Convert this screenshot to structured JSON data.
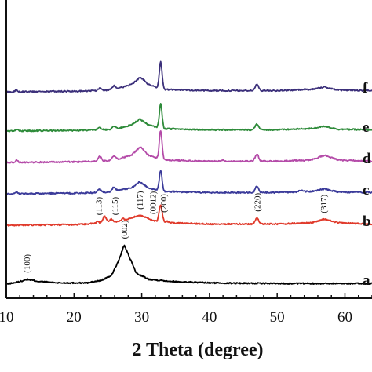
{
  "chart_data": {
    "type": "line",
    "title": "",
    "xlabel": "2 Theta (degree)",
    "ylabel": "",
    "xlim": [
      10,
      64
    ],
    "xticks": [
      10,
      20,
      30,
      40,
      50,
      60
    ],
    "grid": false,
    "series": [
      {
        "name": "a",
        "color": "#000000",
        "offset": 0,
        "baseline": [
          [
            10,
            0.0
          ],
          [
            12,
            2.0
          ],
          [
            13,
            4.0
          ],
          [
            15,
            2.0
          ],
          [
            18,
            1.0
          ],
          [
            22,
            1.0
          ],
          [
            24,
            3.0
          ],
          [
            25.5,
            7.0
          ],
          [
            26.5,
            18.0
          ],
          [
            27.4,
            32.0
          ],
          [
            28.2,
            22.0
          ],
          [
            29.2,
            9.0
          ],
          [
            31,
            4.0
          ],
          [
            35,
            2.0
          ],
          [
            40,
            1.0
          ],
          [
            50,
            0.5
          ],
          [
            64,
            0.5
          ]
        ],
        "peaks": []
      },
      {
        "name": "b",
        "color": "#e03a2b",
        "offset": 75,
        "baseline": [
          [
            10,
            0.0
          ],
          [
            20,
            0.5
          ],
          [
            22,
            1.0
          ],
          [
            23,
            1.5
          ],
          [
            24,
            2.0
          ],
          [
            25,
            2.5
          ],
          [
            26,
            3.0
          ],
          [
            27,
            3.5
          ],
          [
            28.5,
            6.0
          ],
          [
            29.5,
            8.0
          ],
          [
            30.5,
            7.0
          ],
          [
            31.5,
            4.0
          ],
          [
            32.5,
            3.0
          ],
          [
            34,
            2.0
          ],
          [
            40,
            1.0
          ],
          [
            50,
            1.0
          ],
          [
            55,
            2.0
          ],
          [
            57,
            5.0
          ],
          [
            59,
            2.0
          ],
          [
            64,
            1.0
          ]
        ],
        "peaks": [
          [
            23.5,
            1.5,
            0.15
          ],
          [
            24.5,
            5.0,
            0.25
          ],
          [
            25.5,
            2.5,
            0.2
          ],
          [
            27.2,
            1.5,
            0.2
          ],
          [
            32.8,
            14.0,
            0.22
          ],
          [
            33.8,
            1.0,
            0.2
          ],
          [
            47.0,
            5.0,
            0.25
          ]
        ]
      },
      {
        "name": "c",
        "color": "#3b3b9a",
        "offset": 115,
        "baseline": [
          [
            10,
            0.0
          ],
          [
            20,
            0.5
          ],
          [
            24,
            1.0
          ],
          [
            26,
            2.0
          ],
          [
            28.5,
            5.0
          ],
          [
            29.7,
            10.0
          ],
          [
            31,
            5.0
          ],
          [
            33,
            2.0
          ],
          [
            40,
            1.0
          ],
          [
            50,
            1.0
          ],
          [
            55,
            2.0
          ],
          [
            57,
            4.0
          ],
          [
            59,
            1.5
          ],
          [
            64,
            1.0
          ]
        ],
        "peaks": [
          [
            11.5,
            1.5,
            0.2
          ],
          [
            23.8,
            3.0,
            0.25
          ],
          [
            25.9,
            3.5,
            0.25
          ],
          [
            32.8,
            17.0,
            0.2
          ],
          [
            47.0,
            5.0,
            0.25
          ],
          [
            53.5,
            1.0,
            0.3
          ]
        ]
      },
      {
        "name": "d",
        "color": "#b44aa8",
        "offset": 155,
        "baseline": [
          [
            10,
            0.0
          ],
          [
            20,
            0.5
          ],
          [
            24,
            1.0
          ],
          [
            26,
            2.0
          ],
          [
            28.5,
            6.0
          ],
          [
            29.8,
            13.0
          ],
          [
            31,
            6.0
          ],
          [
            33,
            2.0
          ],
          [
            40,
            1.0
          ],
          [
            50,
            1.0
          ],
          [
            55,
            2.0
          ],
          [
            57,
            6.0
          ],
          [
            59,
            2.0
          ],
          [
            64,
            1.0
          ]
        ],
        "peaks": [
          [
            11.5,
            1.5,
            0.2
          ],
          [
            23.8,
            4.0,
            0.25
          ],
          [
            25.9,
            3.5,
            0.25
          ],
          [
            32.8,
            24.0,
            0.2
          ],
          [
            47.0,
            6.0,
            0.25
          ],
          [
            42.0,
            1.0,
            0.3
          ]
        ]
      },
      {
        "name": "e",
        "color": "#2e8b3a",
        "offset": 195,
        "baseline": [
          [
            10,
            0.0
          ],
          [
            20,
            0.5
          ],
          [
            24,
            1.0
          ],
          [
            26,
            1.5
          ],
          [
            28.5,
            5.0
          ],
          [
            29.7,
            10.0
          ],
          [
            31,
            5.0
          ],
          [
            33,
            2.0
          ],
          [
            40,
            1.0
          ],
          [
            50,
            1.0
          ],
          [
            55,
            2.0
          ],
          [
            57,
            4.0
          ],
          [
            59,
            1.5
          ],
          [
            64,
            1.0
          ]
        ],
        "peaks": [
          [
            11.5,
            1.0,
            0.2
          ],
          [
            23.8,
            2.0,
            0.25
          ],
          [
            25.9,
            2.5,
            0.25
          ],
          [
            32.8,
            20.0,
            0.2
          ],
          [
            47.0,
            5.0,
            0.25
          ]
        ]
      },
      {
        "name": "f",
        "color": "#3b2f7a",
        "offset": 245,
        "baseline": [
          [
            10,
            0.0
          ],
          [
            20,
            0.5
          ],
          [
            24,
            1.0
          ],
          [
            26,
            2.0
          ],
          [
            28.5,
            6.0
          ],
          [
            29.8,
            12.0
          ],
          [
            31,
            6.0
          ],
          [
            33,
            2.0
          ],
          [
            40,
            1.0
          ],
          [
            50,
            1.0
          ],
          [
            55,
            2.0
          ],
          [
            57,
            4.0
          ],
          [
            59,
            1.5
          ],
          [
            64,
            1.0
          ]
        ],
        "peaks": [
          [
            11.5,
            1.5,
            0.2
          ],
          [
            23.8,
            2.0,
            0.25
          ],
          [
            25.9,
            3.0,
            0.25
          ],
          [
            32.8,
            22.0,
            0.2
          ],
          [
            47.0,
            5.0,
            0.25
          ]
        ]
      }
    ],
    "annotations": [
      {
        "text": "(100)",
        "x": 13.0,
        "series": "a"
      },
      {
        "text": "(002)",
        "x": 27.4,
        "series": "a"
      },
      {
        "text": "(113)",
        "x": 23.6,
        "series": "b"
      },
      {
        "text": "(115)",
        "x": 26.0,
        "series": "b"
      },
      {
        "text": "(117)",
        "x": 29.7,
        "series": "b"
      },
      {
        "text": "(0012)",
        "x": 31.6,
        "series": "b"
      },
      {
        "text": "(200)",
        "x": 33.2,
        "series": "b"
      },
      {
        "text": "(220)",
        "x": 47.0,
        "series": "b"
      },
      {
        "text": "(317)",
        "x": 56.8,
        "series": "b"
      }
    ]
  }
}
